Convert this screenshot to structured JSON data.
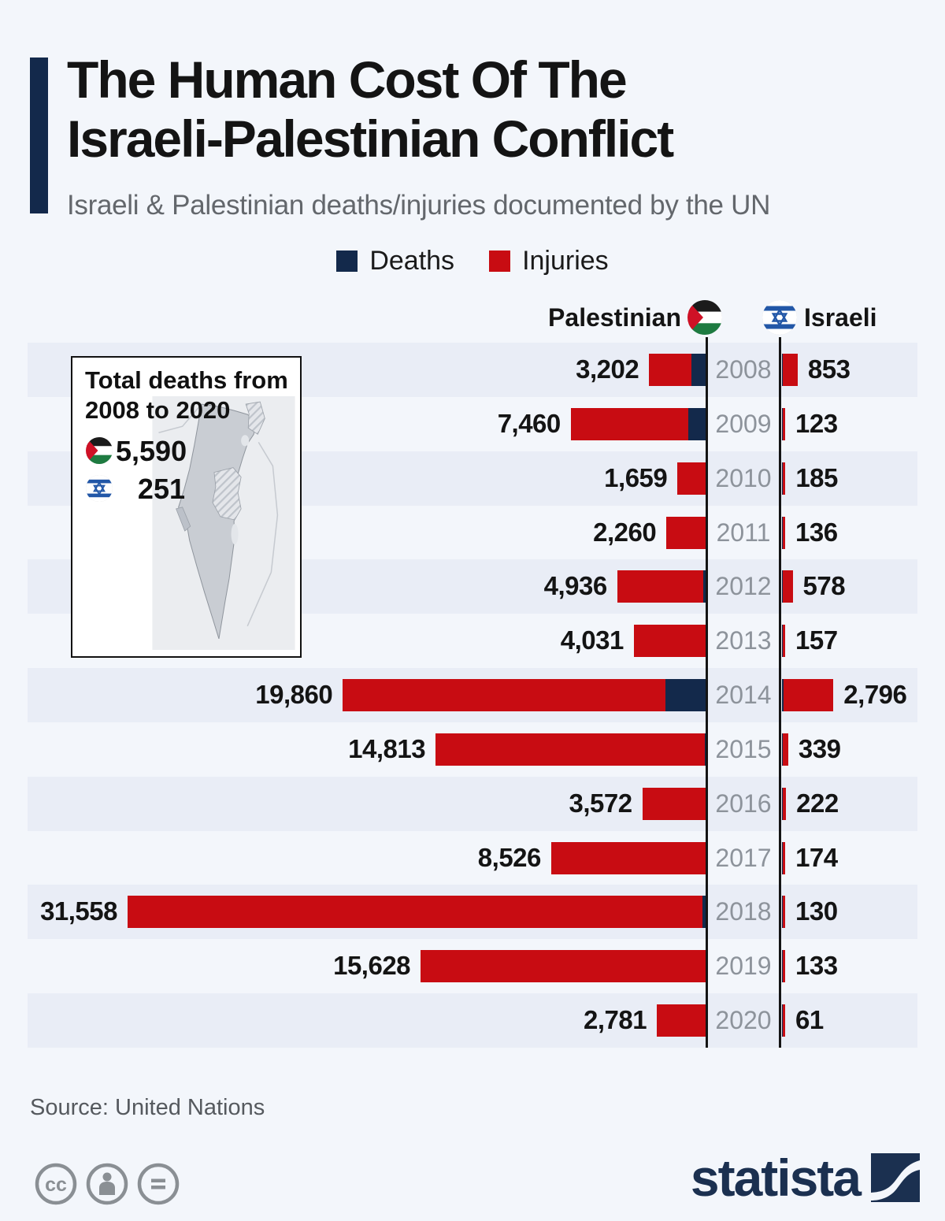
{
  "header": {
    "title_line1": "The Human Cost Of The",
    "title_line2": "Israeli-Palestinian Conflict",
    "subtitle": "Israeli & Palestinian deaths/injuries documented by the UN"
  },
  "legend": {
    "deaths_label": "Deaths",
    "injuries_label": "Injuries"
  },
  "columns": {
    "palestinian_label": "Palestinian",
    "israeli_label": "Israeli"
  },
  "inset": {
    "title_line1": "Total deaths from",
    "title_line2": "2008 to 2020",
    "palestinian_deaths_total": "5,590",
    "israeli_deaths_total": "251"
  },
  "footer": {
    "source": "Source: United Nations",
    "brand": "statista",
    "license_icons": [
      "cc-icon",
      "attribution-person-icon",
      "no-derivatives-equals-icon"
    ]
  },
  "icons": [
    "palestinian-flag-icon",
    "israeli-flag-icon",
    "israel-palestine-map",
    "statista-logo-mark"
  ],
  "colors": {
    "background": "#f3f6fb",
    "row_stripe": "#e9edf6",
    "deaths_navy": "#13294b",
    "injuries_red": "#c80c12",
    "year_gray": "#8d939b",
    "axis_black": "#141414",
    "brand_navy": "#1b3050"
  },
  "chart_data": {
    "type": "bar",
    "orientation": "diverging horizontal, Palestinian bars grow left, Israeli bars grow right",
    "title": "The Human Cost Of The Israeli-Palestinian Conflict",
    "subtitle": "Israeli & Palestinian deaths/injuries documented by the UN",
    "legend_position": "top-center",
    "grid": false,
    "value_axis_max": 31558,
    "categories": [
      2008,
      2009,
      2010,
      2011,
      2012,
      2013,
      2014,
      2015,
      2016,
      2017,
      2018,
      2019,
      2020
    ],
    "series": [
      {
        "name": "Palestinian casualties (labeled bar totals)",
        "values": [
          3202,
          7460,
          1659,
          2260,
          4936,
          4031,
          19860,
          14813,
          3572,
          8526,
          31558,
          15628,
          2781
        ]
      },
      {
        "name": "Palestinian deaths (navy sub-segment, estimated from bar proportions)",
        "values": [
          887,
          1066,
          87,
          118,
          260,
          39,
          2329,
          174,
          109,
          78,
          300,
          138,
          30
        ]
      },
      {
        "name": "Israeli casualties (labeled bar totals)",
        "values": [
          853,
          123,
          185,
          136,
          578,
          157,
          2796,
          339,
          222,
          174,
          130,
          133,
          61
        ]
      },
      {
        "name": "Israeli deaths (navy sub-segment, estimated from bar proportions)",
        "values": [
          35,
          9,
          5,
          11,
          10,
          6,
          87,
          25,
          16,
          15,
          15,
          10,
          3
        ]
      }
    ]
  }
}
